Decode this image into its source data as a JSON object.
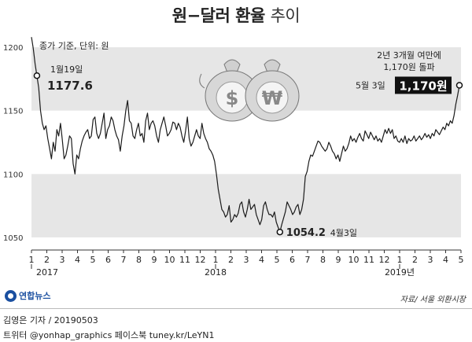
{
  "title_main": "원−달러 환율",
  "title_suffix": "추이",
  "unit_note": "종가 기준, 단위: 원",
  "source": "자료/ 서울 외환시장",
  "logo_text": "연합뉴스",
  "credit_line1": "김영은 기자 / 20190503",
  "credit_line2": "트위터 @yonhap_graphics  페이스북 tuney.kr/LeYN1",
  "colors": {
    "line": "#1b1b1b",
    "band": "#e6e6e6",
    "axis": "#333333",
    "highlight_box": "#111111",
    "coin": "#c8c8c8"
  },
  "chart_data": {
    "type": "line",
    "title": "원−달러 환율 추이",
    "ylabel": "",
    "y_ticks": [
      1050,
      1100,
      1150,
      1200
    ],
    "ylim": [
      1040,
      1210
    ],
    "x_month_labels": [
      "1",
      "2",
      "3",
      "4",
      "5",
      "6",
      "7",
      "8",
      "9",
      "10",
      "11",
      "12",
      "1",
      "2",
      "3",
      "4",
      "5",
      "6",
      "7",
      "8",
      "9",
      "10",
      "11",
      "12",
      "1",
      "2",
      "3",
      "4",
      "5"
    ],
    "x_year_labels": [
      {
        "label": "2017",
        "month_index": 0
      },
      {
        "label": "2018",
        "month_index": 12
      },
      {
        "label": "2019년",
        "month_index": 24
      }
    ],
    "grid": false,
    "series": [
      {
        "values": [
          1208,
          1199,
          1187,
          1177.6,
          1168,
          1150,
          1140,
          1135,
          1138,
          1128,
          1120,
          1112,
          1125,
          1118,
          1135,
          1130,
          1140,
          1127,
          1112,
          1115,
          1122,
          1130,
          1128,
          1108,
          1100,
          1115,
          1112,
          1120,
          1126,
          1130,
          1133,
          1135,
          1128,
          1130,
          1143,
          1145,
          1132,
          1128,
          1132,
          1140,
          1148,
          1128,
          1135,
          1138,
          1145,
          1142,
          1135,
          1130,
          1127,
          1118,
          1130,
          1138,
          1150,
          1158,
          1142,
          1140,
          1130,
          1128,
          1135,
          1140,
          1130,
          1132,
          1125,
          1142,
          1148,
          1135,
          1140,
          1142,
          1138,
          1130,
          1125,
          1135,
          1140,
          1145,
          1138,
          1130,
          1132,
          1135,
          1141,
          1140,
          1135,
          1140,
          1137,
          1130,
          1125,
          1134,
          1145,
          1128,
          1122,
          1125,
          1130,
          1135,
          1130,
          1128,
          1140,
          1132,
          1128,
          1125,
          1120,
          1118,
          1115,
          1110,
          1100,
          1088,
          1080,
          1072,
          1070,
          1066,
          1068,
          1075,
          1062,
          1064,
          1068,
          1066,
          1069,
          1076,
          1078,
          1070,
          1066,
          1072,
          1080,
          1072,
          1074,
          1076,
          1068,
          1064,
          1060,
          1064,
          1075,
          1078,
          1072,
          1068,
          1068,
          1066,
          1070,
          1062,
          1058,
          1054.2,
          1060,
          1065,
          1070,
          1078,
          1075,
          1072,
          1068,
          1070,
          1074,
          1076,
          1068,
          1072,
          1080,
          1098,
          1102,
          1110,
          1115,
          1114,
          1118,
          1122,
          1126,
          1125,
          1122,
          1120,
          1118,
          1120,
          1125,
          1122,
          1118,
          1116,
          1112,
          1115,
          1110,
          1116,
          1122,
          1118,
          1120,
          1124,
          1130,
          1126,
          1128,
          1125,
          1129,
          1132,
          1128,
          1126,
          1134,
          1131,
          1128,
          1133,
          1130,
          1127,
          1130,
          1126,
          1128,
          1125,
          1130,
          1135,
          1132,
          1136,
          1132,
          1135,
          1128,
          1130,
          1126,
          1125,
          1128,
          1125,
          1130,
          1124,
          1128,
          1126,
          1127,
          1130,
          1126,
          1128,
          1130,
          1127,
          1129,
          1132,
          1129,
          1131,
          1128,
          1132,
          1130,
          1135,
          1133,
          1131,
          1134,
          1137,
          1135,
          1140,
          1138,
          1142,
          1140,
          1146,
          1155,
          1162,
          1170
        ]
      }
    ],
    "annotations": [
      {
        "label_date": "1월19일",
        "value": 1177.6,
        "value_text": "1177.6"
      },
      {
        "value": 1054.2,
        "value_text": "1054.2",
        "label_date": "4월3일"
      },
      {
        "label_date": "5월 3일",
        "value": 1170,
        "value_text": "1,170원",
        "note_line1": "2년 3개월 여만에",
        "note_line2": "1,170원 돌파"
      }
    ],
    "bands": [
      [
        1150,
        1200
      ],
      [
        1050,
        1100
      ]
    ]
  }
}
